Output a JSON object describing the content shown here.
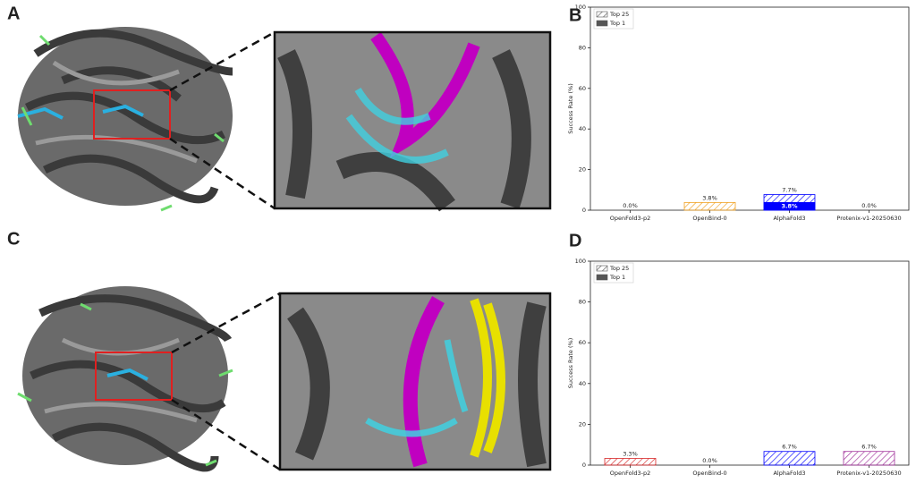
{
  "panels": [
    "A",
    "B",
    "C",
    "D"
  ],
  "chart_data": [
    {
      "type": "bar",
      "ylabel": "Success Rate (%)",
      "categories": [
        "OpenFold3-p2",
        "OpenBind-0",
        "AlphaFold3",
        "Protenix-v1-20250630"
      ],
      "category_colors": [
        "#d62728",
        "#f0a020",
        "#0000ff",
        "#a0309a"
      ],
      "series": [
        {
          "name": "Top 25",
          "color": "#555555",
          "hatch": true,
          "values": [
            0.0,
            3.8,
            7.7,
            0.0
          ],
          "value_labels": [
            "0.0%",
            "3.8%",
            "7.7%",
            "0.0%"
          ]
        },
        {
          "name": "Top 1",
          "color": "#555555",
          "hatch": false,
          "values": [
            0.0,
            0.0,
            3.8,
            0.0
          ],
          "value_labels": [
            null,
            null,
            "3.8%",
            null
          ]
        }
      ],
      "ylim": [
        0,
        100
      ],
      "yticks": [
        0,
        20,
        40,
        60,
        80,
        100
      ],
      "legend": "upper left"
    },
    {
      "type": "bar",
      "ylabel": "Success Rate (%)",
      "categories": [
        "OpenFold3-p2",
        "OpenBind-0",
        "AlphaFold3",
        "Protenix-v1-20250630"
      ],
      "category_colors": [
        "#d62728",
        "#f0a020",
        "#0000ff",
        "#a0309a"
      ],
      "series": [
        {
          "name": "Top 25",
          "color": "#555555",
          "hatch": true,
          "values": [
            3.3,
            0.0,
            6.7,
            6.7
          ],
          "value_labels": [
            "3.3%",
            "0.0%",
            "6.7%",
            "6.7%"
          ]
        },
        {
          "name": "Top 1",
          "color": "#555555",
          "hatch": false,
          "values": [
            0.0,
            0.0,
            0.0,
            0.0
          ],
          "value_labels": [
            null,
            null,
            null,
            null
          ]
        }
      ],
      "ylim": [
        0,
        100
      ],
      "yticks": [
        0,
        20,
        40,
        60,
        80,
        100
      ],
      "legend": "upper left"
    }
  ]
}
